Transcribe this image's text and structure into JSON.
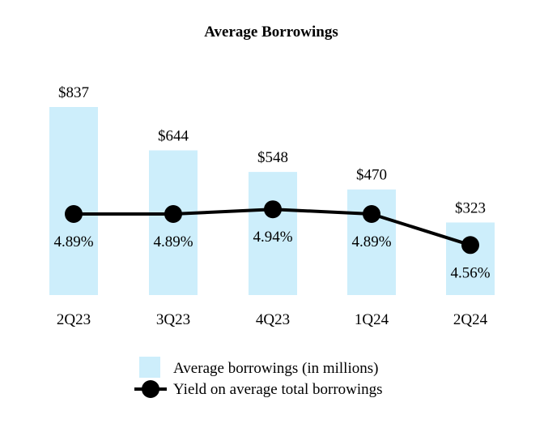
{
  "chart_data": {
    "type": "bar+line",
    "title": "Average Borrowings",
    "categories": [
      "2Q23",
      "3Q23",
      "4Q23",
      "1Q24",
      "2Q24"
    ],
    "series": [
      {
        "name": "Average borrowings (in millions)",
        "type": "bar",
        "values": [
          837,
          644,
          548,
          470,
          323
        ],
        "labels": [
          "$837",
          "$644",
          "$548",
          "$470",
          "$323"
        ],
        "color": "#cdeefb"
      },
      {
        "name": "Yield on average total borrowings",
        "type": "line",
        "values": [
          4.89,
          4.89,
          4.94,
          4.89,
          4.56
        ],
        "labels": [
          "4.89%",
          "4.89%",
          "4.94%",
          "4.89%",
          "4.56%"
        ],
        "color": "#000000"
      }
    ],
    "legend_position": "bottom",
    "grid": false
  }
}
